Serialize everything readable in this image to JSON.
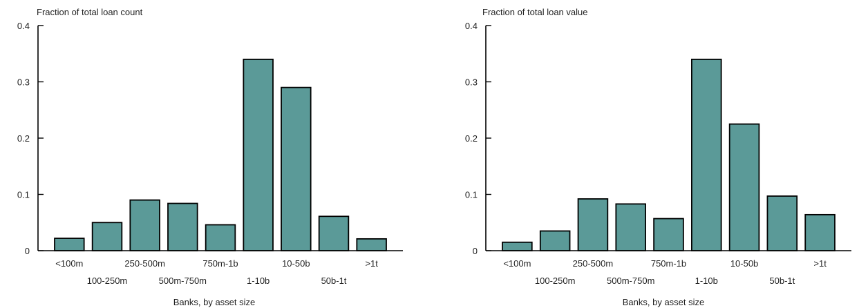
{
  "chart_data": [
    {
      "type": "bar",
      "title": "Fraction of total loan count",
      "xlabel": "Banks, by asset size",
      "ylabel": "",
      "ylim": [
        0,
        0.4
      ],
      "yticks": [
        0,
        0.1,
        0.2,
        0.3,
        0.4
      ],
      "ytick_labels": [
        "0",
        "0.1",
        "0.2",
        "0.3",
        "0.4"
      ],
      "categories": [
        "<100m",
        "100-250m",
        "250-500m",
        "500m-750m",
        "750m-1b",
        "1-10b",
        "10-50b",
        "50b-1t",
        ">1t"
      ],
      "values": [
        0.022,
        0.05,
        0.09,
        0.084,
        0.046,
        0.34,
        0.29,
        0.061,
        0.021
      ],
      "grid": false,
      "bar_color": "#5b9a98"
    },
    {
      "type": "bar",
      "title": "Fraction of total loan value",
      "xlabel": "Banks, by asset size",
      "ylabel": "",
      "ylim": [
        0,
        0.4
      ],
      "yticks": [
        0,
        0.1,
        0.2,
        0.3,
        0.4
      ],
      "ytick_labels": [
        "0",
        "0.1",
        "0.2",
        "0.3",
        "0.4"
      ],
      "categories": [
        "<100m",
        "100-250m",
        "250-500m",
        "500m-750m",
        "750m-1b",
        "1-10b",
        "10-50b",
        "50b-1t",
        ">1t"
      ],
      "values": [
        0.015,
        0.035,
        0.092,
        0.083,
        0.057,
        0.34,
        0.225,
        0.097,
        0.064
      ],
      "grid": false,
      "bar_color": "#5b9a98"
    }
  ]
}
